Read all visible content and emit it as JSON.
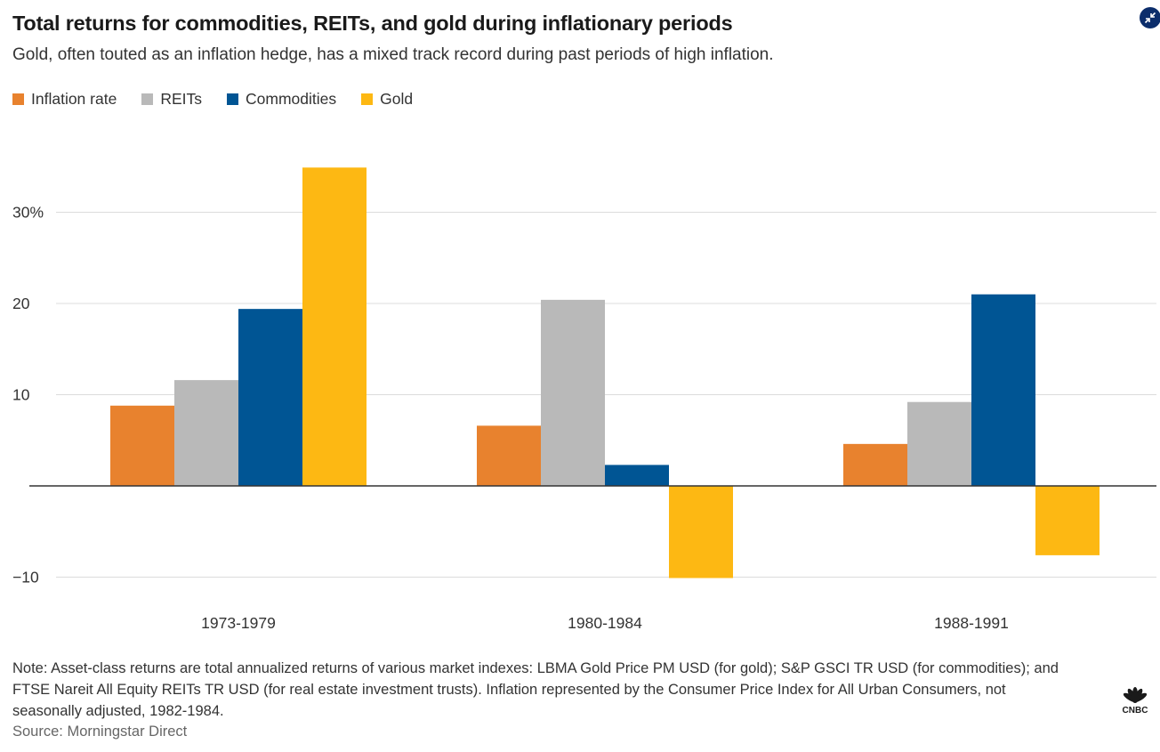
{
  "header": {
    "title": "Total returns for commodities, REITs, and gold during inflationary periods",
    "subtitle": "Gold, often touted as an inflation hedge, has a mixed track record during past periods of high inflation."
  },
  "legend": [
    {
      "label": "Inflation rate",
      "color": "#e8822e"
    },
    {
      "label": "REITs",
      "color": "#b9b9b9"
    },
    {
      "label": "Commodities",
      "color": "#005594"
    },
    {
      "label": "Gold",
      "color": "#fdb813"
    }
  ],
  "chart_data": {
    "type": "bar",
    "categories": [
      "1973-1979",
      "1980-1984",
      "1988-1991"
    ],
    "series": [
      {
        "name": "Inflation rate",
        "values": [
          8.8,
          6.6,
          4.6
        ],
        "color": "#e8822e"
      },
      {
        "name": "REITs",
        "values": [
          11.6,
          20.4,
          9.2
        ],
        "color": "#b9b9b9"
      },
      {
        "name": "Commodities",
        "values": [
          19.4,
          2.3,
          21.0
        ],
        "color": "#005594"
      },
      {
        "name": "Gold",
        "values": [
          34.9,
          -10.1,
          -7.6
        ],
        "color": "#fdb813"
      }
    ],
    "ylim": [
      -10,
      35
    ],
    "yticks": [
      {
        "value": 30,
        "label": "30%"
      },
      {
        "value": 20,
        "label": "20"
      },
      {
        "value": 10,
        "label": "10"
      },
      {
        "value": -10,
        "label": "−10"
      }
    ],
    "grid": true,
    "legend_position": "top-left"
  },
  "footer": {
    "note": "Note: Asset-class returns are total annualized returns of various market indexes: LBMA Gold Price PM USD (for gold); S&P GSCI TR USD (for commodities); and FTSE Nareit All Equity REITs TR USD (for real estate investment trusts). Inflation represented by the Consumer Price Index for All Urban Consumers, not seasonally adjusted, 1982-1984.",
    "source": "Source: Morningstar Direct",
    "logo_text": "CNBC"
  },
  "icons": {
    "expand": "collapse-arrows-icon",
    "logo": "cnbc-peacock-icon"
  }
}
